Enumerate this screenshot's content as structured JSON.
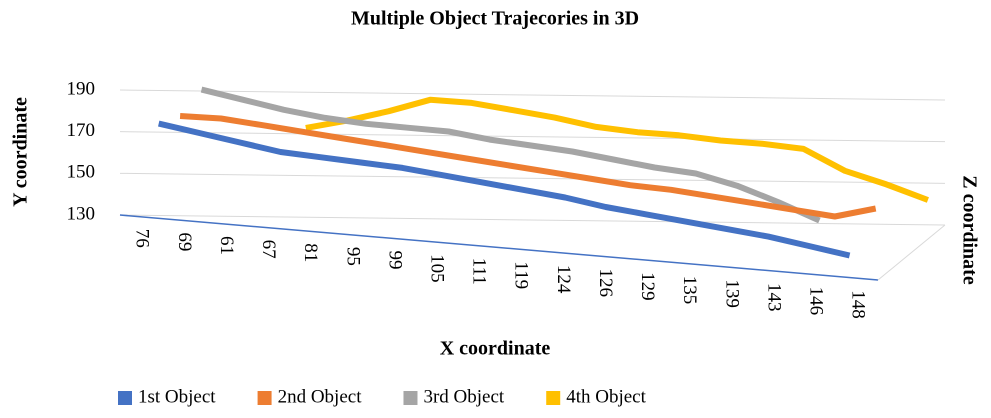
{
  "chart_data": {
    "type": "line3d",
    "title": "Multiple Object Trajecories in 3D",
    "x_label": "X coordinate",
    "y_label": "Y coordinate",
    "z_label": "Z coordinate",
    "categories": [
      "76",
      "69",
      "61",
      "67",
      "81",
      "95",
      "99",
      "105",
      "111",
      "119",
      "124",
      "126",
      "129",
      "135",
      "139",
      "143",
      "146",
      "148"
    ],
    "ylim": [
      130,
      190
    ],
    "yticks": [
      130,
      150,
      170,
      190
    ],
    "grid": true,
    "series": [
      {
        "name": "1st Object",
        "color": "#4472c4",
        "values": [
          175,
          172,
          169,
          166,
          165,
          164,
          163,
          161,
          159,
          157,
          155,
          152,
          150,
          148,
          146,
          144,
          141,
          138
        ]
      },
      {
        "name": "2nd Object",
        "color": "#ed7d31",
        "values": [
          178,
          178,
          176,
          174,
          172,
          170,
          168,
          166,
          164,
          162,
          160,
          158,
          157,
          155,
          153,
          151,
          149,
          154
        ]
      },
      {
        "name": "3rd Object",
        "color": "#a5a5a5",
        "values": [
          190,
          186,
          182,
          179,
          177,
          176,
          175,
          172,
          170,
          168,
          165,
          162,
          160,
          155,
          148,
          140,
          null,
          null
        ]
      },
      {
        "name": "4th Object",
        "color": "#ffc000",
        "values": [
          null,
          null,
          172,
          176,
          181,
          187,
          186,
          183,
          180,
          176,
          174,
          173,
          171,
          170,
          168,
          158,
          152,
          145
        ]
      }
    ]
  }
}
